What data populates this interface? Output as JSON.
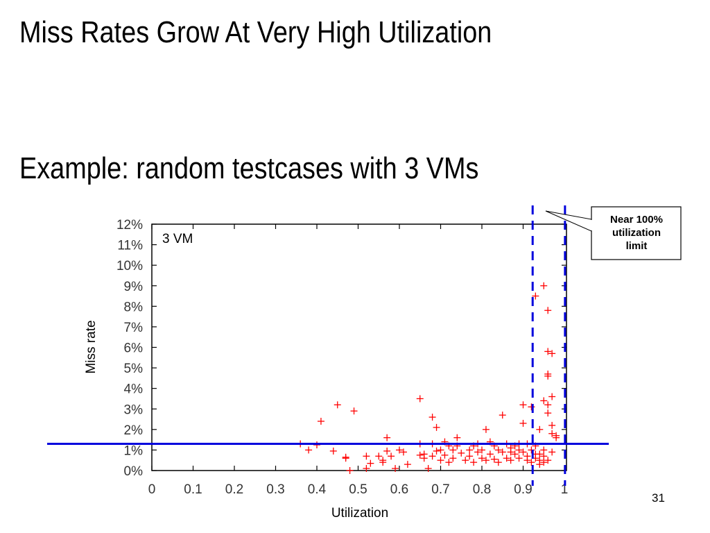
{
  "slide": {
    "title": "Miss Rates Grow At Very High Utilization",
    "subtitle": "Example: random testcases with 3 VMs",
    "page_number": "31",
    "callout": {
      "line1": "Near 100%",
      "line2": "utilization",
      "line3": "limit"
    }
  },
  "colors": {
    "points": "#ff0000",
    "threshold_line": "#0000dd",
    "axes": "#000000"
  },
  "chart_data": {
    "type": "scatter",
    "title": "",
    "annotation": "3 VM",
    "xlabel": "Utilization",
    "ylabel": "Miss rate",
    "xlim": [
      0,
      1
    ],
    "ylim": [
      0,
      12
    ],
    "x_ticks": [
      "0",
      "0.1",
      "0.2",
      "0.3",
      "0.4",
      "0.5",
      "0.6",
      "0.7",
      "0.8",
      "0.9",
      "1"
    ],
    "y_ticks": [
      "0%",
      "1%",
      "2%",
      "3%",
      "4%",
      "5%",
      "6%",
      "7%",
      "8%",
      "9%",
      "10%",
      "11%",
      "12%"
    ],
    "grid": false,
    "marker": "+",
    "horizontal_line_y": 1.3,
    "vertical_dashed_x": [
      0.918,
      0.988
    ],
    "points": [
      [
        0.36,
        1.3
      ],
      [
        0.38,
        1.0
      ],
      [
        0.4,
        1.25
      ],
      [
        0.41,
        2.4
      ],
      [
        0.45,
        3.2
      ],
      [
        0.44,
        0.95
      ],
      [
        0.47,
        0.6
      ],
      [
        0.47,
        0.65
      ],
      [
        0.49,
        2.9
      ],
      [
        0.48,
        0.0
      ],
      [
        0.52,
        0.7
      ],
      [
        0.52,
        0.1
      ],
      [
        0.53,
        0.35
      ],
      [
        0.55,
        0.7
      ],
      [
        0.56,
        0.4
      ],
      [
        0.56,
        0.5
      ],
      [
        0.57,
        1.6
      ],
      [
        0.57,
        0.95
      ],
      [
        0.58,
        0.7
      ],
      [
        0.59,
        0.1
      ],
      [
        0.6,
        1.0
      ],
      [
        0.61,
        0.9
      ],
      [
        0.62,
        0.3
      ],
      [
        0.65,
        3.5
      ],
      [
        0.65,
        1.3
      ],
      [
        0.65,
        0.75
      ],
      [
        0.66,
        0.6
      ],
      [
        0.66,
        0.8
      ],
      [
        0.67,
        0.1
      ],
      [
        0.68,
        2.6
      ],
      [
        0.68,
        1.3
      ],
      [
        0.68,
        0.7
      ],
      [
        0.69,
        2.1
      ],
      [
        0.69,
        0.95
      ],
      [
        0.7,
        0.5
      ],
      [
        0.7,
        1.0
      ],
      [
        0.71,
        0.75
      ],
      [
        0.71,
        1.4
      ],
      [
        0.72,
        1.2
      ],
      [
        0.72,
        0.4
      ],
      [
        0.73,
        1.0
      ],
      [
        0.73,
        0.6
      ],
      [
        0.74,
        1.6
      ],
      [
        0.74,
        1.2
      ],
      [
        0.75,
        0.85
      ],
      [
        0.76,
        0.5
      ],
      [
        0.77,
        1.0
      ],
      [
        0.77,
        0.7
      ],
      [
        0.78,
        1.2
      ],
      [
        0.78,
        0.4
      ],
      [
        0.79,
        0.9
      ],
      [
        0.79,
        1.3
      ],
      [
        0.8,
        0.6
      ],
      [
        0.8,
        1.0
      ],
      [
        0.81,
        0.5
      ],
      [
        0.81,
        2.0
      ],
      [
        0.82,
        1.4
      ],
      [
        0.82,
        0.8
      ],
      [
        0.83,
        1.2
      ],
      [
        0.83,
        0.55
      ],
      [
        0.84,
        1.0
      ],
      [
        0.84,
        0.4
      ],
      [
        0.85,
        2.7
      ],
      [
        0.85,
        0.9
      ],
      [
        0.86,
        1.3
      ],
      [
        0.86,
        0.6
      ],
      [
        0.87,
        1.1
      ],
      [
        0.87,
        0.5
      ],
      [
        0.88,
        0.8
      ],
      [
        0.88,
        1.2
      ],
      [
        0.89,
        0.6
      ],
      [
        0.89,
        1.0
      ],
      [
        0.9,
        3.2
      ],
      [
        0.9,
        2.3
      ],
      [
        0.9,
        0.9
      ],
      [
        0.91,
        0.7
      ],
      [
        0.91,
        1.3
      ],
      [
        0.92,
        0.4
      ],
      [
        0.92,
        1.0
      ],
      [
        0.92,
        3.1
      ],
      [
        0.93,
        8.5
      ],
      [
        0.93,
        0.6
      ],
      [
        0.93,
        1.2
      ],
      [
        0.94,
        2.0
      ],
      [
        0.94,
        0.8
      ],
      [
        0.94,
        0.3
      ],
      [
        0.95,
        9.0
      ],
      [
        0.95,
        3.4
      ],
      [
        0.95,
        0.7
      ],
      [
        0.95,
        1.0
      ],
      [
        0.96,
        7.8
      ],
      [
        0.96,
        5.8
      ],
      [
        0.96,
        4.7
      ],
      [
        0.96,
        3.2
      ],
      [
        0.96,
        0.5
      ],
      [
        0.97,
        5.7
      ],
      [
        0.97,
        3.6
      ],
      [
        0.97,
        2.2
      ],
      [
        0.97,
        1.8
      ],
      [
        0.97,
        0.9
      ],
      [
        0.98,
        1.7
      ],
      [
        0.98,
        1.6
      ],
      [
        0.96,
        2.8
      ],
      [
        0.96,
        4.6
      ],
      [
        0.95,
        0.4
      ],
      [
        0.94,
        0.5
      ],
      [
        0.93,
        0.8
      ],
      [
        0.91,
        0.5
      ],
      [
        0.89,
        1.3
      ],
      [
        0.87,
        0.9
      ]
    ]
  }
}
